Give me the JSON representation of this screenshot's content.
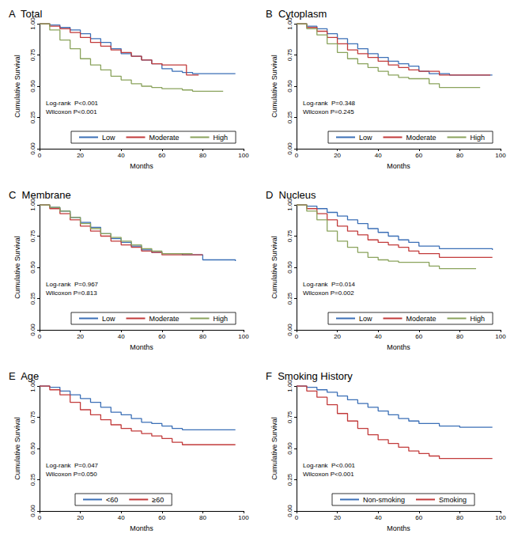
{
  "chart_data": [
    {
      "type": "line",
      "panel": "A",
      "title": "Total",
      "x_label": "Months",
      "y_label": "Cumulative Survival",
      "xlim": [
        0,
        100
      ],
      "xticks": [
        0,
        20,
        40,
        60,
        80,
        100
      ],
      "ylim": [
        0,
        1
      ],
      "yticks": [
        {
          "value": 0,
          "label": "0.00"
        },
        {
          "value": 0.25,
          "label": "0.25"
        },
        {
          "value": 0.5,
          "label": "0.50"
        },
        {
          "value": 0.75,
          "label": "0.75"
        },
        {
          "value": 1,
          "label": "1.00"
        }
      ],
      "annotations": [
        "Log-rank  P<0.001",
        "Wilcoxon P<0.001"
      ],
      "legend": "bottom",
      "line_style": "step",
      "series": [
        {
          "name": "Low",
          "color": "#3b6fb6",
          "x": [
            0,
            5,
            10,
            15,
            20,
            25,
            30,
            35,
            40,
            45,
            50,
            55,
            60,
            65,
            70,
            75,
            96
          ],
          "values": [
            1,
            0.99,
            0.97,
            0.95,
            0.92,
            0.88,
            0.85,
            0.8,
            0.76,
            0.74,
            0.71,
            0.68,
            0.64,
            0.62,
            0.61,
            0.6,
            0.6
          ]
        },
        {
          "name": "Moderate",
          "color": "#c23b3b",
          "x": [
            0,
            5,
            10,
            15,
            20,
            25,
            30,
            35,
            40,
            45,
            50,
            55,
            60,
            70,
            72,
            78
          ],
          "values": [
            1,
            0.98,
            0.96,
            0.93,
            0.89,
            0.85,
            0.82,
            0.79,
            0.77,
            0.74,
            0.71,
            0.68,
            0.67,
            0.67,
            0.59,
            0.59
          ]
        },
        {
          "name": "High",
          "color": "#8aa35c",
          "x": [
            0,
            5,
            10,
            15,
            20,
            25,
            30,
            35,
            40,
            45,
            50,
            55,
            60,
            70,
            75,
            90
          ],
          "values": [
            1,
            0.95,
            0.87,
            0.8,
            0.72,
            0.67,
            0.63,
            0.58,
            0.55,
            0.52,
            0.5,
            0.49,
            0.48,
            0.47,
            0.46,
            0.46
          ]
        }
      ]
    },
    {
      "type": "line",
      "panel": "B",
      "title": "Cytoplasm",
      "x_label": "Months",
      "y_label": "Cumulative Survival",
      "xlim": [
        0,
        100
      ],
      "xticks": [
        0,
        20,
        40,
        60,
        80,
        100
      ],
      "ylim": [
        0,
        1
      ],
      "yticks": [
        {
          "value": 0,
          "label": "0.00"
        },
        {
          "value": 0.25,
          "label": "0.25"
        },
        {
          "value": 0.5,
          "label": "0.50"
        },
        {
          "value": 0.75,
          "label": "0.75"
        },
        {
          "value": 1,
          "label": "1.00"
        }
      ],
      "annotations": [
        "Log-rank  P=0.348",
        "Wilcoxon P=0.245"
      ],
      "legend": "bottom",
      "line_style": "step",
      "series": [
        {
          "name": "Low",
          "color": "#3b6fb6",
          "x": [
            0,
            5,
            10,
            15,
            20,
            25,
            30,
            35,
            40,
            45,
            50,
            55,
            60,
            65,
            75,
            96
          ],
          "values": [
            1,
            0.98,
            0.96,
            0.92,
            0.88,
            0.84,
            0.8,
            0.76,
            0.73,
            0.7,
            0.68,
            0.66,
            0.62,
            0.6,
            0.59,
            0.59
          ]
        },
        {
          "name": "Moderate",
          "color": "#c23b3b",
          "x": [
            0,
            5,
            10,
            15,
            20,
            25,
            30,
            35,
            40,
            45,
            50,
            55,
            60,
            70,
            95
          ],
          "values": [
            1,
            0.97,
            0.94,
            0.89,
            0.84,
            0.79,
            0.76,
            0.73,
            0.7,
            0.67,
            0.65,
            0.63,
            0.62,
            0.59,
            0.59
          ]
        },
        {
          "name": "High",
          "color": "#8aa35c",
          "x": [
            0,
            5,
            10,
            15,
            20,
            25,
            30,
            35,
            40,
            45,
            50,
            55,
            60,
            65,
            70,
            90
          ],
          "values": [
            1,
            0.96,
            0.91,
            0.84,
            0.77,
            0.72,
            0.68,
            0.65,
            0.62,
            0.59,
            0.57,
            0.56,
            0.56,
            0.52,
            0.49,
            0.49
          ]
        }
      ]
    },
    {
      "type": "line",
      "panel": "C",
      "title": "Membrane",
      "x_label": "Months",
      "y_label": "Cumulative Survival",
      "xlim": [
        0,
        100
      ],
      "xticks": [
        0,
        20,
        40,
        60,
        80,
        100
      ],
      "ylim": [
        0,
        1
      ],
      "yticks": [
        {
          "value": 0,
          "label": "0.00"
        },
        {
          "value": 0.25,
          "label": "0.25"
        },
        {
          "value": 0.5,
          "label": "0.50"
        },
        {
          "value": 0.75,
          "label": "0.75"
        },
        {
          "value": 1,
          "label": "1.00"
        }
      ],
      "annotations": [
        "Log-rank  P=0.967",
        "Wilcoxon P=0.813"
      ],
      "legend": "bottom",
      "line_style": "step",
      "series": [
        {
          "name": "Low",
          "color": "#3b6fb6",
          "x": [
            0,
            5,
            10,
            15,
            20,
            25,
            30,
            35,
            40,
            45,
            50,
            55,
            60,
            70,
            80,
            96
          ],
          "values": [
            1,
            0.98,
            0.95,
            0.9,
            0.86,
            0.82,
            0.77,
            0.73,
            0.7,
            0.67,
            0.64,
            0.62,
            0.61,
            0.6,
            0.56,
            0.55
          ]
        },
        {
          "name": "Moderate",
          "color": "#c23b3b",
          "x": [
            0,
            5,
            10,
            15,
            20,
            25,
            30,
            35,
            40,
            45,
            50,
            55,
            60,
            80
          ],
          "values": [
            1,
            0.97,
            0.93,
            0.88,
            0.83,
            0.79,
            0.75,
            0.71,
            0.68,
            0.66,
            0.63,
            0.62,
            0.6,
            0.6
          ]
        },
        {
          "name": "High",
          "color": "#8aa35c",
          "x": [
            0,
            5,
            10,
            15,
            20,
            25,
            30,
            35,
            40,
            45,
            50,
            55,
            60,
            75
          ],
          "values": [
            1,
            0.98,
            0.95,
            0.9,
            0.85,
            0.81,
            0.77,
            0.74,
            0.71,
            0.68,
            0.65,
            0.63,
            0.61,
            0.61
          ]
        }
      ]
    },
    {
      "type": "line",
      "panel": "D",
      "title": "Nucleus",
      "x_label": "Months",
      "y_label": "Cumulative Survival",
      "xlim": [
        0,
        100
      ],
      "xticks": [
        0,
        20,
        40,
        60,
        80,
        100
      ],
      "ylim": [
        0,
        1
      ],
      "yticks": [
        {
          "value": 0,
          "label": "0.00"
        },
        {
          "value": 0.25,
          "label": "0.25"
        },
        {
          "value": 0.5,
          "label": "0.50"
        },
        {
          "value": 0.75,
          "label": "0.75"
        },
        {
          "value": 1,
          "label": "1.00"
        }
      ],
      "annotations": [
        "Log-rank  P=0.014",
        "Wilcoxon P=0.002"
      ],
      "legend": "bottom",
      "line_style": "step",
      "series": [
        {
          "name": "Low",
          "color": "#3b6fb6",
          "x": [
            0,
            5,
            10,
            15,
            20,
            25,
            30,
            35,
            40,
            45,
            50,
            55,
            60,
            70,
            96
          ],
          "values": [
            1,
            0.99,
            0.97,
            0.94,
            0.91,
            0.88,
            0.85,
            0.81,
            0.78,
            0.75,
            0.72,
            0.7,
            0.67,
            0.65,
            0.64
          ]
        },
        {
          "name": "Moderate",
          "color": "#c23b3b",
          "x": [
            0,
            5,
            10,
            15,
            20,
            25,
            30,
            35,
            40,
            45,
            50,
            55,
            60,
            70,
            96
          ],
          "values": [
            1,
            0.97,
            0.93,
            0.88,
            0.83,
            0.79,
            0.76,
            0.72,
            0.7,
            0.68,
            0.66,
            0.63,
            0.61,
            0.58,
            0.58
          ]
        },
        {
          "name": "High",
          "color": "#8aa35c",
          "x": [
            0,
            5,
            10,
            15,
            20,
            25,
            30,
            35,
            40,
            45,
            50,
            60,
            65,
            70,
            88
          ],
          "values": [
            1,
            0.95,
            0.88,
            0.79,
            0.71,
            0.66,
            0.62,
            0.58,
            0.56,
            0.55,
            0.54,
            0.54,
            0.51,
            0.49,
            0.49
          ]
        }
      ]
    },
    {
      "type": "line",
      "panel": "E",
      "title": "Age",
      "x_label": "Months",
      "y_label": "Cumulative Survival",
      "xlim": [
        0,
        100
      ],
      "xticks": [
        0,
        20,
        40,
        60,
        80,
        100
      ],
      "ylim": [
        0,
        1
      ],
      "yticks": [
        {
          "value": 0,
          "label": "0.00"
        },
        {
          "value": 0.25,
          "label": "0.25"
        },
        {
          "value": 0.5,
          "label": "0.50"
        },
        {
          "value": 0.75,
          "label": "0.75"
        },
        {
          "value": 1,
          "label": "1.00"
        }
      ],
      "annotations": [
        "Log-rank  P=0.047",
        "Wilcoxon P=0.050"
      ],
      "legend": "bottom",
      "line_style": "step",
      "series": [
        {
          "name": "<60",
          "color": "#3b6fb6",
          "x": [
            0,
            5,
            10,
            15,
            20,
            25,
            30,
            35,
            40,
            45,
            50,
            55,
            60,
            65,
            70,
            96
          ],
          "values": [
            1,
            0.99,
            0.96,
            0.93,
            0.9,
            0.87,
            0.83,
            0.79,
            0.77,
            0.74,
            0.71,
            0.7,
            0.68,
            0.66,
            0.65,
            0.65
          ]
        },
        {
          "name": "≥60",
          "color": "#c23b3b",
          "x": [
            0,
            5,
            10,
            15,
            20,
            25,
            30,
            35,
            40,
            45,
            50,
            55,
            60,
            65,
            70,
            96
          ],
          "values": [
            1,
            0.97,
            0.93,
            0.87,
            0.81,
            0.77,
            0.73,
            0.69,
            0.66,
            0.64,
            0.62,
            0.6,
            0.58,
            0.55,
            0.53,
            0.53
          ]
        }
      ]
    },
    {
      "type": "line",
      "panel": "F",
      "title": "Smoking History",
      "x_label": "Months",
      "y_label": "Cumulative Survival",
      "xlim": [
        0,
        100
      ],
      "xticks": [
        0,
        20,
        40,
        60,
        80,
        100
      ],
      "ylim": [
        0,
        1
      ],
      "yticks": [
        {
          "value": 0,
          "label": "0.00"
        },
        {
          "value": 0.25,
          "label": "0.25"
        },
        {
          "value": 0.5,
          "label": "0.50"
        },
        {
          "value": 0.75,
          "label": "0.75"
        },
        {
          "value": 1,
          "label": "1.00"
        }
      ],
      "annotations": [
        "Log-rank  P<0.001",
        "Wilcoxon P<0.001"
      ],
      "legend": "bottom",
      "line_style": "step",
      "series": [
        {
          "name": "Non-smoking",
          "color": "#3b6fb6",
          "x": [
            0,
            5,
            10,
            15,
            20,
            25,
            30,
            35,
            40,
            45,
            50,
            55,
            60,
            70,
            80,
            96
          ],
          "values": [
            1,
            0.99,
            0.97,
            0.95,
            0.92,
            0.89,
            0.86,
            0.83,
            0.8,
            0.77,
            0.74,
            0.72,
            0.7,
            0.68,
            0.67,
            0.67
          ]
        },
        {
          "name": "Smoking",
          "color": "#c23b3b",
          "x": [
            0,
            5,
            10,
            15,
            20,
            25,
            30,
            35,
            40,
            45,
            50,
            55,
            60,
            65,
            70,
            96
          ],
          "values": [
            1,
            0.96,
            0.91,
            0.85,
            0.78,
            0.72,
            0.66,
            0.61,
            0.57,
            0.54,
            0.51,
            0.48,
            0.46,
            0.44,
            0.42,
            0.42
          ]
        }
      ]
    }
  ]
}
